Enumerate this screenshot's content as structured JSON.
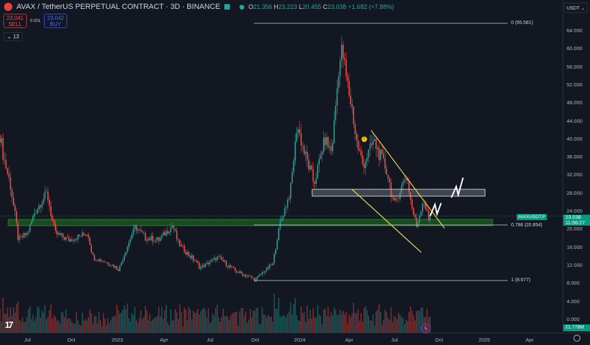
{
  "header": {
    "title": "AVAX / TetherUS PERPETUAL CONTRACT · 3D · BINANCE",
    "ohlc": {
      "o_label": "O",
      "o": "21.356",
      "h_label": "H",
      "h": "23.223",
      "l_label": "L",
      "l": "20.455",
      "c_label": "C",
      "c": "23.038",
      "change": "+1.682 (+7.88%)"
    }
  },
  "trade": {
    "sell_price": "23.041",
    "sell_label": "SELL",
    "spread": "0.001",
    "buy_price": "23.042",
    "buy_label": "BUY"
  },
  "indicators_toggle": "13",
  "currency": "USDT",
  "last_price": {
    "symbol": "AVAXUSDT.P",
    "price": "23.038",
    "countdown": "11:56:27"
  },
  "volume_label": "21.778M",
  "colors": {
    "up": "#26a69a",
    "down": "#ef5350",
    "background": "#131722",
    "zone": "#1b5e20",
    "trendline": "#e5d84a"
  },
  "chart_data": {
    "type": "candlestick",
    "timeframe": "3D",
    "ylim": [
      0,
      66
    ],
    "price_ticks": [
      "64.000",
      "60.000",
      "56.000",
      "52.000",
      "48.000",
      "44.000",
      "40.000",
      "36.000",
      "32.000",
      "28.000",
      "24.000",
      "20.000",
      "16.000",
      "12.000",
      "8.000",
      "4.000",
      "0.000"
    ],
    "time_ticks": [
      "Jul",
      "Oct",
      "2023",
      "Apr",
      "Jul",
      "Oct",
      "2024",
      "Apr",
      "Jul",
      "Oct",
      "2025",
      "Apr"
    ],
    "close_path": [
      [
        "2022-05-07",
        40.7
      ],
      [
        "2022-05-14",
        36
      ],
      [
        "2022-05-28",
        29.6
      ],
      [
        "2022-06-13",
        17.5
      ],
      [
        "2022-07-01",
        19
      ],
      [
        "2022-07-15",
        23.5
      ],
      [
        "2022-08-09",
        28
      ],
      [
        "2022-08-25",
        19
      ],
      [
        "2022-09-22",
        17.5
      ],
      [
        "2022-10-30",
        19
      ],
      [
        "2022-11-09",
        13.7
      ],
      [
        "2022-12-14",
        12.2
      ],
      [
        "2022-12-31",
        11
      ],
      [
        "2023-02-01",
        20.5
      ],
      [
        "2023-02-22",
        18
      ],
      [
        "2023-03-21",
        17.5
      ],
      [
        "2023-04-18",
        20.8
      ],
      [
        "2023-04-29",
        16.7
      ],
      [
        "2023-06-13",
        11.4
      ],
      [
        "2023-07-17",
        13.7
      ],
      [
        "2023-08-21",
        10.6
      ],
      [
        "2023-10-01",
        8.7
      ],
      [
        "2023-10-12",
        10
      ],
      [
        "2023-11-04",
        12.2
      ],
      [
        "2023-11-18",
        21
      ],
      [
        "2023-12-09",
        28
      ],
      [
        "2023-12-23",
        43
      ],
      [
        "2024-01-06",
        37
      ],
      [
        "2024-01-26",
        30
      ],
      [
        "2024-02-16",
        40
      ],
      [
        "2024-03-01",
        37
      ],
      [
        "2024-03-15",
        55
      ],
      [
        "2024-03-22",
        60
      ],
      [
        "2024-03-29",
        54
      ],
      [
        "2024-04-12",
        46
      ],
      [
        "2024-04-19",
        39.5
      ],
      [
        "2024-05-03",
        34
      ],
      [
        "2024-05-24",
        39.5
      ],
      [
        "2024-06-20",
        32.7
      ],
      [
        "2024-07-04",
        25
      ],
      [
        "2024-07-18",
        29
      ],
      [
        "2024-07-29",
        32
      ],
      [
        "2024-08-08",
        25
      ],
      [
        "2024-08-18",
        20.5
      ],
      [
        "2024-09-01",
        26.6
      ],
      [
        "2024-09-12",
        21.3
      ],
      [
        "2024-09-16",
        23.038
      ]
    ],
    "fib_levels": [
      {
        "label": "0 (65.581)",
        "value": 65.581
      },
      {
        "label": "0.786 (20.854)",
        "value": 20.854
      },
      {
        "label": "1 (8.677)",
        "value": 8.677
      }
    ],
    "support_zone": [
      20.5,
      22
    ],
    "resistance_zone": [
      27.5,
      29
    ]
  }
}
